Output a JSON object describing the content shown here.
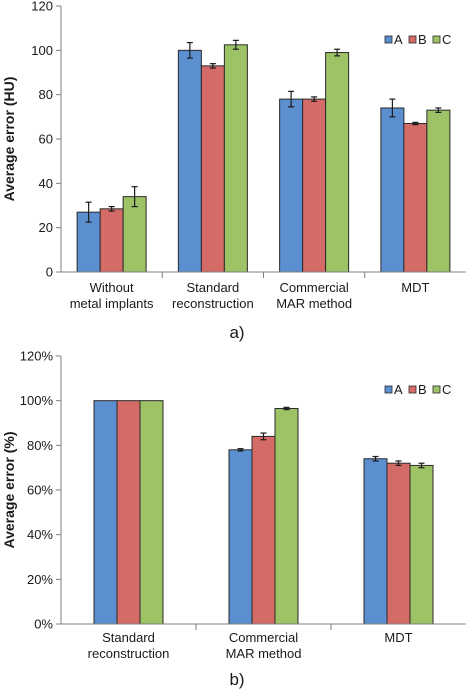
{
  "chart_data": [
    {
      "type": "bar",
      "panel_label": "a)",
      "ylabel": "Average error (HU)",
      "ylim": [
        0,
        120
      ],
      "yticks": [
        0,
        20,
        40,
        60,
        80,
        100,
        120
      ],
      "ytick_labels": [
        "0",
        "20",
        "40",
        "60",
        "80",
        "100",
        "120"
      ],
      "categories": [
        [
          "Without",
          "metal implants"
        ],
        [
          "Standard",
          "reconstruction"
        ],
        [
          "Commercial",
          "MAR method"
        ],
        [
          "MDT"
        ]
      ],
      "series": [
        {
          "name": "A",
          "color": "#5b8fcf",
          "values": [
            27,
            100,
            78,
            74
          ],
          "errors": [
            4.5,
            3.5,
            3.5,
            4
          ]
        },
        {
          "name": "B",
          "color": "#d46b67",
          "values": [
            28.5,
            93,
            78,
            67
          ],
          "errors": [
            1,
            1,
            1,
            0.5
          ]
        },
        {
          "name": "C",
          "color": "#9ec266",
          "values": [
            34,
            102.5,
            99,
            73
          ],
          "errors": [
            4.5,
            2,
            1.5,
            1
          ]
        }
      ],
      "legend_position": "top-right",
      "grid": false
    },
    {
      "type": "bar",
      "panel_label": "b)",
      "ylabel": "Average error (%)",
      "ylim": [
        0,
        120
      ],
      "yticks": [
        0,
        20,
        40,
        60,
        80,
        100,
        120
      ],
      "ytick_labels": [
        "0%",
        "20%",
        "40%",
        "60%",
        "80%",
        "100%",
        "120%"
      ],
      "categories": [
        [
          "Standard",
          "reconstruction"
        ],
        [
          "Commercial",
          "MAR method"
        ],
        [
          "MDT"
        ]
      ],
      "series": [
        {
          "name": "A",
          "color": "#5b8fcf",
          "values": [
            100,
            78,
            74
          ],
          "errors": [
            0,
            0.5,
            1
          ]
        },
        {
          "name": "B",
          "color": "#d46b67",
          "values": [
            100,
            84,
            72
          ],
          "errors": [
            0,
            1.5,
            1
          ]
        },
        {
          "name": "C",
          "color": "#9ec266",
          "values": [
            100,
            96.5,
            71
          ],
          "errors": [
            0,
            0.5,
            1
          ]
        }
      ],
      "legend_position": "top-right",
      "grid": false
    }
  ]
}
